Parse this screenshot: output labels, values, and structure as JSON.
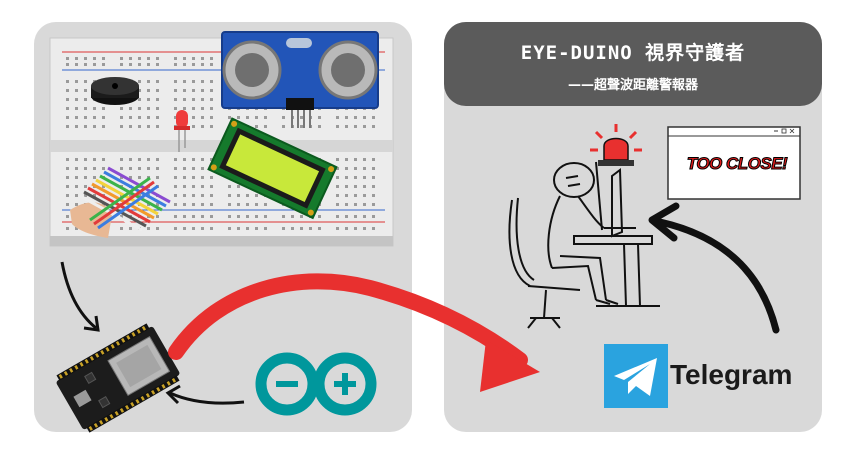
{
  "title": {
    "main": "EYE-DUINO 視界守護者",
    "sub": "——超聲波距離警報器"
  },
  "telegram": {
    "label": "Telegram"
  },
  "alert_window": {
    "text": "TOO CLOSE!"
  },
  "icons": [
    "breadboard",
    "ultrasonic-sensor",
    "buzzer",
    "red-led",
    "lcd-module",
    "jumper-wires",
    "esp32-board",
    "arduino-logo",
    "person-at-computer",
    "siren-icon",
    "telegram-logo",
    "alert-window"
  ],
  "colors": {
    "panel": "#d9d9d9",
    "title_bar": "#5b5b5b",
    "arrow_red": "#e8302f",
    "arduino_teal": "#00979c",
    "telegram_blue": "#2aa3df",
    "sensor_blue": "#2255b8",
    "lcd_green": "#c8e83a"
  }
}
